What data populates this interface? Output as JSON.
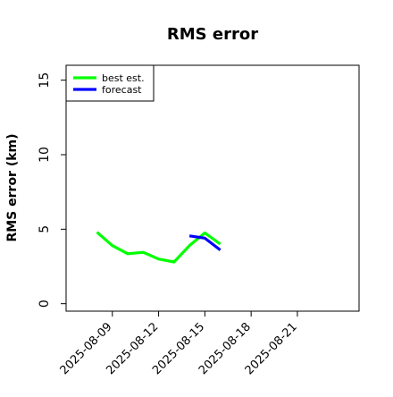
{
  "chart_data": {
    "type": "line",
    "title": "RMS error",
    "xlabel": "",
    "ylabel": "RMS error (km)",
    "x_type": "date",
    "xlim": [
      "2025-08-06",
      "2025-08-25"
    ],
    "ylim": [
      -0.5,
      16
    ],
    "yticks": [
      0,
      5,
      10,
      15
    ],
    "xticks": [
      "2025-08-09",
      "2025-08-12",
      "2025-08-15",
      "2025-08-18",
      "2025-08-21"
    ],
    "grid": false,
    "legend": "top-left",
    "series": [
      {
        "name": "best est.",
        "color": "#00ff00",
        "x": [
          "2025-08-08",
          "2025-08-09",
          "2025-08-10",
          "2025-08-11",
          "2025-08-12",
          "2025-08-13",
          "2025-08-14",
          "2025-08-15",
          "2025-08-16"
        ],
        "y": [
          4.8,
          3.9,
          3.35,
          3.45,
          3.0,
          2.8,
          3.9,
          4.75,
          4.0
        ]
      },
      {
        "name": "forecast",
        "color": "#0000ff",
        "x": [
          "2025-08-14",
          "2025-08-15",
          "2025-08-16"
        ],
        "y": [
          4.55,
          4.4,
          3.6
        ]
      }
    ]
  }
}
